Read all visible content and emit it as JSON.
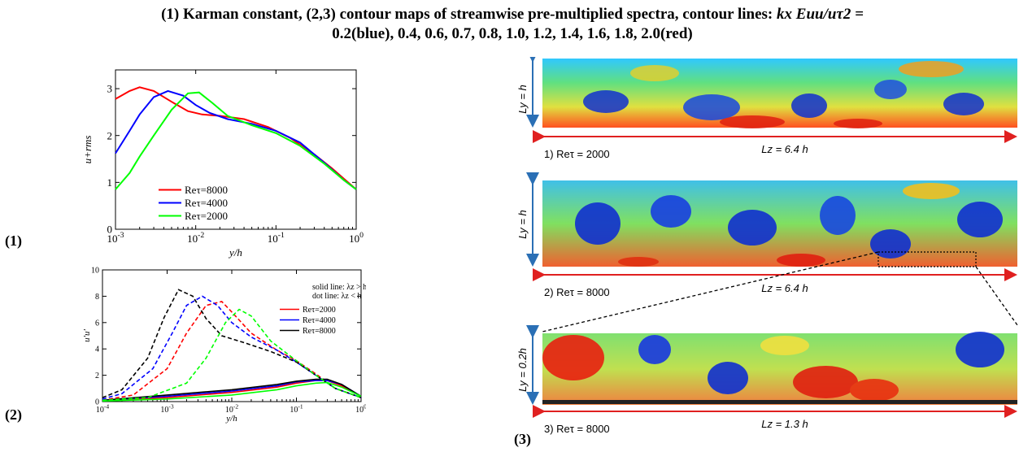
{
  "title": {
    "part1": "(1) Karman constant, (2,3) contour maps of streamwise pre-multiplied spectra, contour lines: ",
    "math": "kx Euu/uτ2 =",
    "part2": "0.2(blue), 0.4, 0.6, 0.7, 0.8, 1.0, 1.2, 1.4, 1.6, 1.8, 2.0(red)"
  },
  "panel_labels": [
    "(1)",
    "(2)",
    "(3)"
  ],
  "chart_data": [
    {
      "type": "line",
      "xscale": "log",
      "xlim": [
        0.001,
        1
      ],
      "ylim": [
        0,
        3.4
      ],
      "xlabel": "y/h",
      "ylabel": "u+rms",
      "x_ticks": [
        "10-3",
        "10-2",
        "10-1",
        "100"
      ],
      "y_ticks": [
        "0",
        "1",
        "2",
        "3"
      ],
      "legend": "center-left",
      "series": [
        {
          "name": "Reτ=8000",
          "color": "#ff0000",
          "x": [
            0.001,
            0.0015,
            0.002,
            0.003,
            0.005,
            0.008,
            0.012,
            0.02,
            0.04,
            0.08,
            0.15,
            0.3,
            0.5,
            0.7,
            1.0
          ],
          "y": [
            2.78,
            2.95,
            3.03,
            2.95,
            2.72,
            2.52,
            2.45,
            2.42,
            2.35,
            2.18,
            1.95,
            1.6,
            1.3,
            1.08,
            0.85
          ]
        },
        {
          "name": "Reτ=4000",
          "color": "#0000ff",
          "x": [
            0.001,
            0.0015,
            0.002,
            0.003,
            0.0045,
            0.007,
            0.01,
            0.015,
            0.025,
            0.05,
            0.1,
            0.2,
            0.4,
            0.7,
            1.0
          ],
          "y": [
            1.62,
            2.1,
            2.45,
            2.82,
            2.95,
            2.85,
            2.65,
            2.48,
            2.35,
            2.25,
            2.1,
            1.85,
            1.42,
            1.05,
            0.85
          ]
        },
        {
          "name": "Reτ=2000",
          "color": "#00ff00",
          "x": [
            0.001,
            0.0015,
            0.002,
            0.003,
            0.005,
            0.008,
            0.011,
            0.016,
            0.025,
            0.05,
            0.1,
            0.2,
            0.4,
            0.7,
            1.0
          ],
          "y": [
            0.85,
            1.2,
            1.55,
            2.0,
            2.55,
            2.9,
            2.92,
            2.7,
            2.42,
            2.22,
            2.05,
            1.78,
            1.4,
            1.05,
            0.85
          ]
        }
      ]
    },
    {
      "type": "line",
      "xscale": "log",
      "xlim": [
        0.0001,
        1
      ],
      "ylim": [
        0,
        10
      ],
      "xlabel": "y/h",
      "ylabel": "u'u'",
      "x_ticks": [
        "10-4",
        "10-3",
        "10-2",
        "10-1",
        "100"
      ],
      "y_ticks": [
        "0",
        "2",
        "4",
        "6",
        "8",
        "10"
      ],
      "legend": "top-right",
      "annotation": [
        "solid line: λz > h",
        "dot line: λz < h"
      ],
      "series": [
        {
          "name": "Reτ=2000",
          "color": "#ff0000",
          "dashed": {
            "x": [
              0.0001,
              0.0003,
              0.001,
              0.002,
              0.004,
              0.007,
              0.01,
              0.02,
              0.05,
              0.1,
              0.2,
              0.4,
              1.0
            ],
            "y": [
              0.1,
              0.5,
              2.5,
              5.2,
              7.3,
              7.6,
              6.8,
              5.2,
              3.9,
              3.1,
              2.1,
              1.0,
              0.3
            ]
          },
          "solid": {
            "x": [
              0.0001,
              0.001,
              0.01,
              0.05,
              0.1,
              0.2,
              0.3,
              0.5,
              1.0
            ],
            "y": [
              0.1,
              0.3,
              0.7,
              1.1,
              1.4,
              1.6,
              1.6,
              1.2,
              0.4
            ]
          }
        },
        {
          "name": "Reτ=4000",
          "color": "#0000ff",
          "dashed": {
            "x": [
              0.0001,
              0.0002,
              0.0006,
              0.0012,
              0.002,
              0.0035,
              0.006,
              0.01,
              0.02,
              0.05,
              0.1,
              0.2,
              0.4,
              1.0
            ],
            "y": [
              0.2,
              0.6,
              2.5,
              5.2,
              7.3,
              8.0,
              7.3,
              6.0,
              4.9,
              3.9,
              3.0,
              2.0,
              1.0,
              0.3
            ]
          },
          "solid": {
            "x": [
              0.0001,
              0.001,
              0.01,
              0.05,
              0.1,
              0.2,
              0.3,
              0.5,
              1.0
            ],
            "y": [
              0.1,
              0.4,
              0.8,
              1.2,
              1.5,
              1.6,
              1.6,
              1.3,
              0.4
            ]
          }
        },
        {
          "name": "Reτ=8000",
          "color": "#000000",
          "dashed": {
            "x": [
              0.0001,
              0.0002,
              0.0005,
              0.0009,
              0.0015,
              0.0025,
              0.004,
              0.007,
              0.015,
              0.04,
              0.1,
              0.2,
              0.4,
              1.0
            ],
            "y": [
              0.3,
              0.9,
              3.3,
              6.4,
              8.5,
              8.0,
              6.3,
              5.0,
              4.5,
              3.8,
              3.0,
              2.0,
              1.0,
              0.3
            ]
          },
          "solid": {
            "x": [
              0.0001,
              0.001,
              0.01,
              0.05,
              0.1,
              0.2,
              0.3,
              0.5,
              1.0
            ],
            "y": [
              0.1,
              0.5,
              0.9,
              1.3,
              1.55,
              1.7,
              1.7,
              1.3,
              0.4
            ]
          }
        },
        {
          "name": "",
          "color": "#00ff00",
          "dashed": {
            "x": [
              0.0001,
              0.0005,
              0.002,
              0.004,
              0.008,
              0.013,
              0.02,
              0.04,
              0.1,
              0.2,
              0.4,
              1.0
            ],
            "y": [
              0.1,
              0.3,
              1.4,
              3.3,
              6.0,
              7.0,
              6.5,
              4.6,
              3.1,
              2.0,
              1.0,
              0.3
            ]
          },
          "solid": {
            "x": [
              0.0001,
              0.001,
              0.01,
              0.05,
              0.1,
              0.2,
              0.3,
              0.5,
              1.0
            ],
            "y": [
              0.05,
              0.2,
              0.5,
              0.9,
              1.2,
              1.4,
              1.45,
              1.1,
              0.4
            ]
          }
        }
      ]
    }
  ],
  "contours": [
    {
      "ly": "Ly = h",
      "lz": "Lz = 6.4 h",
      "caption": "1) Reτ = 2000"
    },
    {
      "ly": "Ly = h",
      "lz": "Lz = 6.4 h",
      "caption": "2) Reτ = 8000"
    },
    {
      "ly": "Ly = 0.2h",
      "lz": "Lz = 1.3 h",
      "caption": "3) Reτ = 8000"
    }
  ]
}
